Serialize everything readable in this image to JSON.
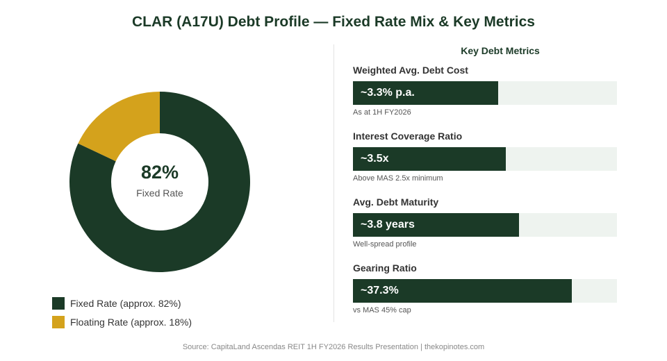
{
  "title": "CLAR (A17U) Debt Profile — Fixed Rate Mix & Key Metrics",
  "chart_data": [
    {
      "type": "pie",
      "categories": [
        "Fixed Rate (approx. 82%)",
        "Floating Rate (approx. 18%)"
      ],
      "values": [
        82,
        18
      ],
      "colors": [
        "#1b3a27",
        "#d4a21c"
      ],
      "center_value": "82%",
      "center_label": "Fixed Rate",
      "legend_placement": "bottom-left"
    },
    {
      "type": "bar",
      "title": "Key Debt Metrics",
      "categories": [
        "Weighted Avg. Debt Cost",
        "Interest Coverage Ratio",
        "Avg. Debt Maturity",
        "Gearing Ratio"
      ],
      "value_labels": [
        "~3.3% p.a.",
        "~3.5x",
        "~3.8 years",
        "~37.3%"
      ],
      "notes": [
        "As at 1H FY2026",
        "Above MAS 2.5x minimum",
        "Well-spread profile",
        "vs MAS 45% cap"
      ],
      "fill_fraction": [
        0.55,
        0.58,
        0.63,
        0.829
      ]
    }
  ],
  "colors": {
    "primary": "#1b3a27",
    "accent": "#d4a21c",
    "track": "#eef3ef"
  },
  "source": "Source: CapitaLand Ascendas REIT 1H FY2026 Results Presentation | thekopinotes.com"
}
